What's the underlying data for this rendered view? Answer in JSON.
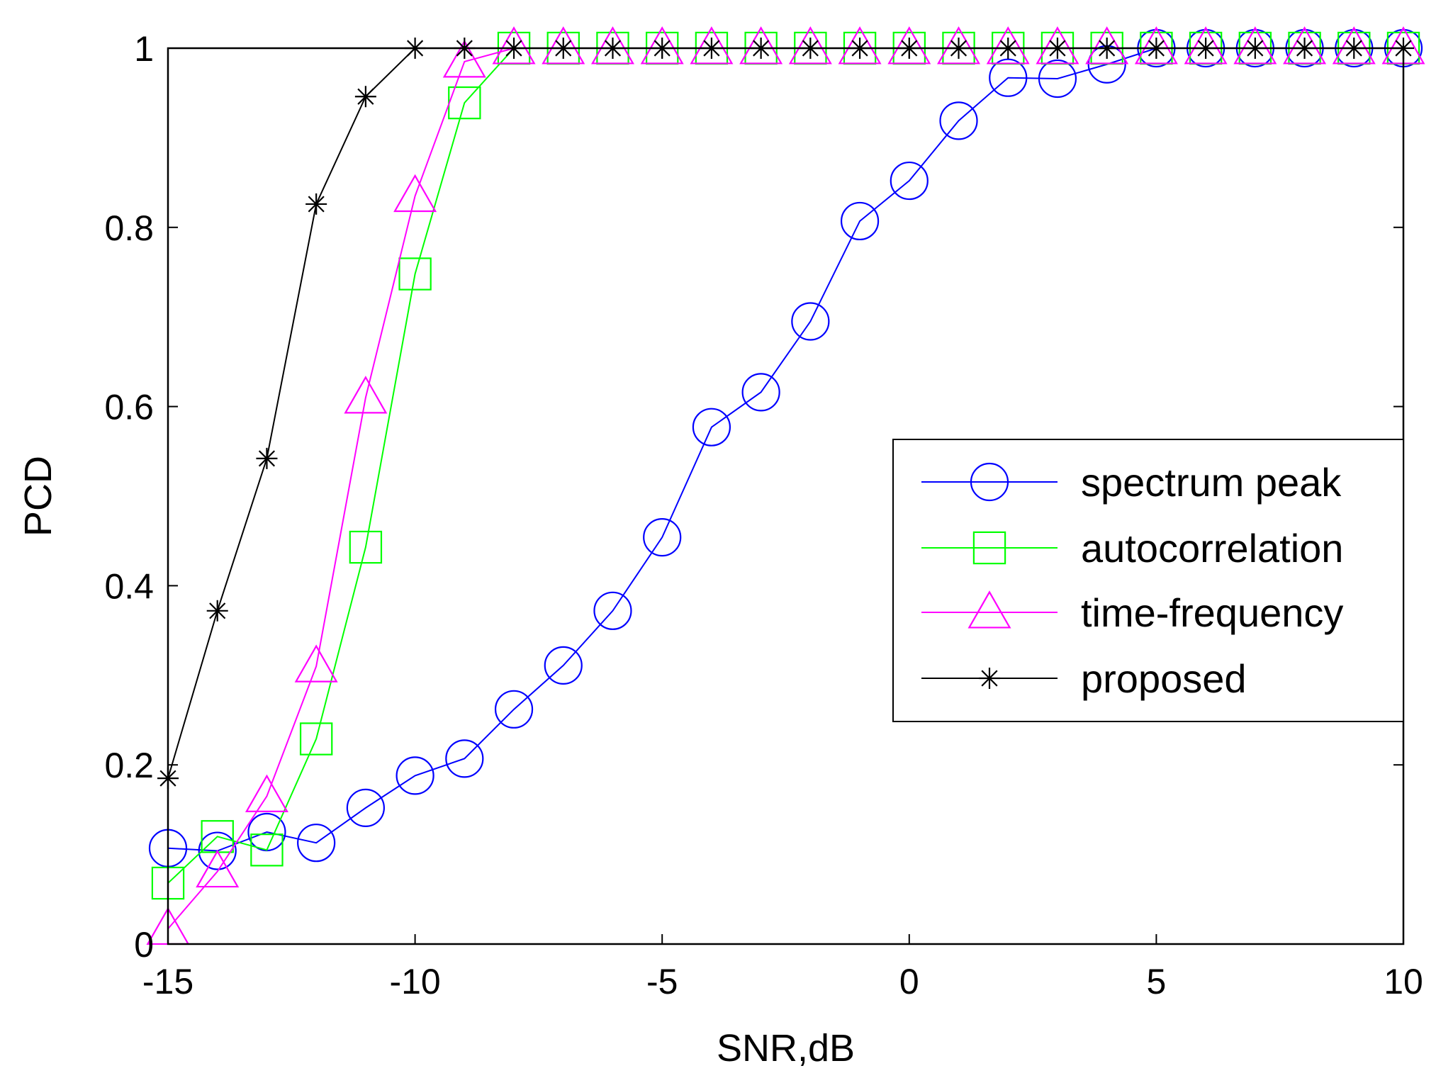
{
  "chart_data": {
    "type": "line",
    "title": "",
    "xlabel": "SNR,dB",
    "ylabel": "PCD",
    "xlim": [
      -15,
      10
    ],
    "ylim": [
      0,
      1
    ],
    "xticks": [
      -15,
      -10,
      -5,
      0,
      5,
      10
    ],
    "yticks": [
      0,
      0.2,
      0.4,
      0.6,
      0.8,
      1
    ],
    "xtick_labels": [
      "-15",
      "-10",
      "-5",
      "0",
      "5",
      "10"
    ],
    "ytick_labels": [
      "0",
      "0.2",
      "0.4",
      "0.6",
      "0.8",
      "1"
    ],
    "grid": false,
    "legend_position": "right",
    "x": [
      -15,
      -14,
      -13,
      -12,
      -11,
      -10,
      -9,
      -8,
      -7,
      -6,
      -5,
      -4,
      -3,
      -2,
      -1,
      0,
      1,
      2,
      3,
      4,
      5,
      6,
      7,
      8,
      9,
      10
    ],
    "series": [
      {
        "name": "spectrum peak",
        "color": "#0000ff",
        "marker": "circle",
        "values": [
          0.107,
          0.104,
          0.125,
          0.113,
          0.152,
          0.188,
          0.207,
          0.262,
          0.311,
          0.372,
          0.454,
          0.577,
          0.616,
          0.695,
          0.807,
          0.852,
          0.919,
          0.967,
          0.966,
          0.982,
          1.0,
          1.0,
          1.0,
          1.0,
          1.0,
          1.0
        ]
      },
      {
        "name": "autocorrelation",
        "color": "#00ff00",
        "marker": "square",
        "values": [
          0.068,
          0.12,
          0.105,
          0.229,
          0.443,
          0.748,
          0.939,
          1.0,
          1.0,
          1.0,
          1.0,
          1.0,
          1.0,
          1.0,
          1.0,
          1.0,
          1.0,
          1.0,
          1.0,
          1.0,
          1.0,
          1.0,
          1.0,
          1.0,
          1.0,
          1.0
        ]
      },
      {
        "name": "time-frequency",
        "color": "#ff00ff",
        "marker": "triangle",
        "values": [
          0.017,
          0.081,
          0.165,
          0.31,
          0.61,
          0.835,
          0.985,
          1.0,
          1.0,
          1.0,
          1.0,
          1.0,
          1.0,
          1.0,
          1.0,
          1.0,
          1.0,
          1.0,
          1.0,
          1.0,
          1.0,
          1.0,
          1.0,
          1.0,
          1.0,
          1.0
        ]
      },
      {
        "name": "proposed",
        "color": "#000000",
        "marker": "star",
        "values": [
          0.185,
          0.372,
          0.542,
          0.826,
          0.946,
          1.0,
          1.0,
          1.0,
          1.0,
          1.0,
          1.0,
          1.0,
          1.0,
          1.0,
          1.0,
          1.0,
          1.0,
          1.0,
          1.0,
          1.0,
          1.0,
          1.0,
          1.0,
          1.0,
          1.0,
          1.0
        ]
      }
    ]
  }
}
